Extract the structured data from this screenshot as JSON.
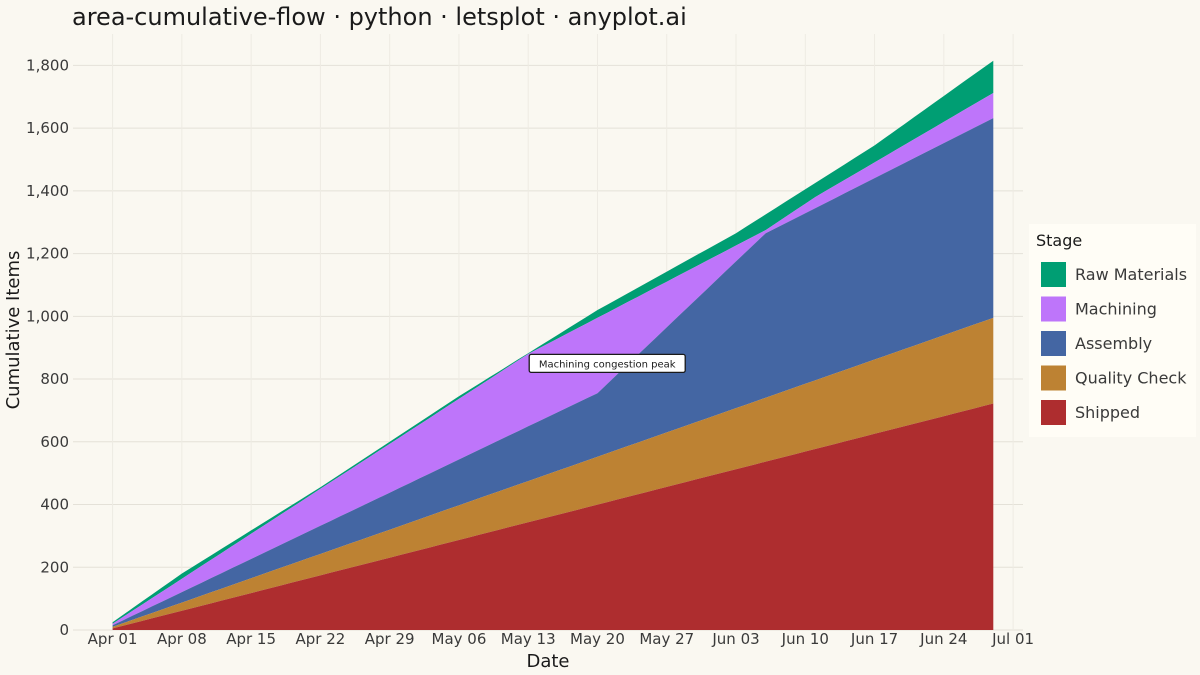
{
  "chart_data": {
    "type": "area",
    "stacked": true,
    "title": "area-cumulative-flow · python · letsplot · anyplot.ai",
    "xlabel": "Date",
    "ylabel": "Cumulative Items",
    "x_start": "2024-04-01",
    "x_end": "2024-06-29",
    "xlim": [
      "2024-03-28",
      "2024-07-02"
    ],
    "ylim": [
      0,
      1900
    ],
    "x_ticks": [
      "Apr 01",
      "Apr 08",
      "Apr 15",
      "Apr 22",
      "Apr 29",
      "May 06",
      "May 13",
      "May 20",
      "May 27",
      "Jun 03",
      "Jun 10",
      "Jun 17",
      "Jun 24",
      "Jul 01"
    ],
    "x_tick_dates": [
      "2024-04-01",
      "2024-04-08",
      "2024-04-15",
      "2024-04-22",
      "2024-04-29",
      "2024-05-06",
      "2024-05-13",
      "2024-05-20",
      "2024-05-27",
      "2024-06-03",
      "2024-06-10",
      "2024-06-17",
      "2024-06-24",
      "2024-07-01"
    ],
    "y_ticks": [
      0,
      200,
      400,
      600,
      800,
      1000,
      1200,
      1400,
      1600,
      1800
    ],
    "y_tick_labels": [
      "0",
      "200",
      "400",
      "600",
      "800",
      "1,000",
      "1,200",
      "1,400",
      "1,600",
      "1,800"
    ],
    "grid": true,
    "legend": {
      "title": "Stage",
      "position": "right"
    },
    "series": [
      {
        "name": "Shipped",
        "color": "#AE2D2F",
        "points": [
          [
            "2024-04-01",
            5
          ],
          [
            "2024-06-29",
            722
          ]
        ]
      },
      {
        "name": "Quality Check",
        "color": "#BD8233",
        "points": [
          [
            "2024-04-01",
            10
          ],
          [
            "2024-06-29",
            995
          ]
        ]
      },
      {
        "name": "Assembly",
        "color": "#4466A3",
        "points": [
          [
            "2024-04-01",
            15
          ],
          [
            "2024-05-20",
            755
          ],
          [
            "2024-06-06",
            1265
          ],
          [
            "2024-06-29",
            1632
          ]
        ]
      },
      {
        "name": "Machining",
        "color": "#BE75FA",
        "points": [
          [
            "2024-04-01",
            20
          ],
          [
            "2024-05-13",
            880
          ],
          [
            "2024-06-06",
            1275
          ],
          [
            "2024-06-11",
            1380
          ],
          [
            "2024-06-29",
            1712
          ]
        ]
      },
      {
        "name": "Raw Materials",
        "color": "#009E73",
        "points": [
          [
            "2024-04-01",
            25
          ],
          [
            "2024-04-08",
            180
          ],
          [
            "2024-04-22",
            455
          ],
          [
            "2024-05-06",
            745
          ],
          [
            "2024-05-20",
            1020
          ],
          [
            "2024-06-03",
            1265
          ],
          [
            "2024-06-17",
            1545
          ],
          [
            "2024-06-29",
            1815
          ]
        ]
      }
    ],
    "annotations": [
      {
        "text": "Machining congestion peak",
        "x": "2024-05-13",
        "y": 850
      }
    ]
  }
}
